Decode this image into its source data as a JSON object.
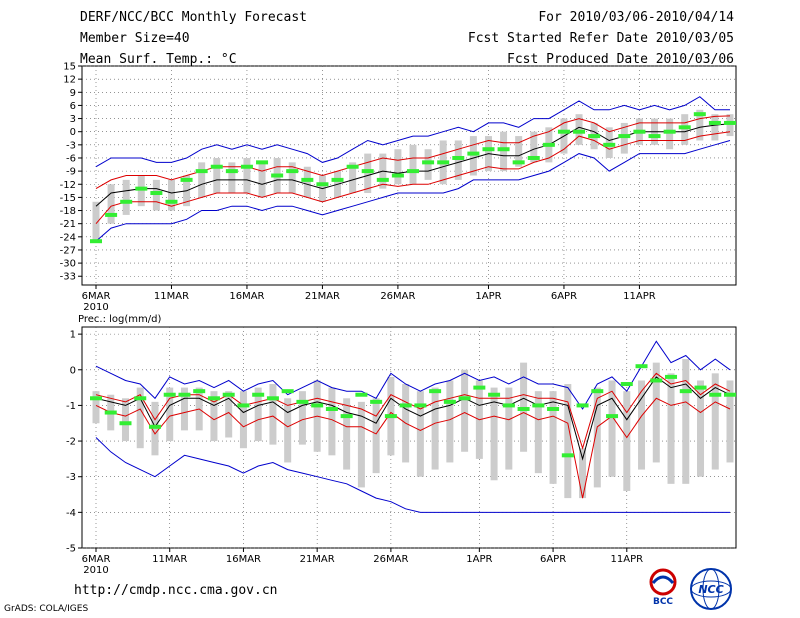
{
  "header": {
    "title": "DERF/NCC/BCC Monthly Forecast",
    "member_size": "Member Size=40",
    "variable": "Mean Surf. Temp.: °C",
    "period": "For 2010/03/06-2010/04/14",
    "start_date": "Fcst Started Refer Date 2010/03/05",
    "produced_date": "Fcst Produced Date 2010/03/06"
  },
  "footer": {
    "url": "http://cmdp.ncc.cma.gov.cn",
    "software": "GrADS: COLA/IGES",
    "logo_bcc": "BCC",
    "logo_ncc": "NCC"
  },
  "colors": {
    "max_min": "#0000cc",
    "spread": "#dd0000",
    "mean": "#000000",
    "obs": "#33ee33",
    "bar": "#cccccc",
    "grid": "#555555"
  },
  "chart_data": [
    {
      "type": "line",
      "title": "Mean Surf. Temp.: °C",
      "ylim": [
        -35,
        15
      ],
      "yticks": [
        15,
        12,
        9,
        6,
        3,
        0,
        -3,
        -6,
        -9,
        -12,
        -15,
        -18,
        -21,
        -24,
        -27,
        -30,
        -33
      ],
      "x_tick_labels": [
        "6MAR",
        "11MAR",
        "16MAR",
        "21MAR",
        "26MAR",
        "1APR",
        "6APR",
        "11APR"
      ],
      "x_tick_days": [
        0,
        5,
        10,
        15,
        20,
        26,
        31,
        36
      ],
      "year_label": "2010",
      "days": 40,
      "mean": [
        -17,
        -14,
        -13.5,
        -13,
        -13,
        -14,
        -13.5,
        -12,
        -11,
        -11,
        -11,
        -12,
        -11,
        -11,
        -12,
        -13,
        -12,
        -11,
        -10,
        -9,
        -9.5,
        -9,
        -9,
        -8,
        -7,
        -6,
        -5,
        -5.5,
        -5.5,
        -4,
        -3,
        -1,
        1,
        0,
        -2,
        -1,
        0,
        0,
        0,
        0,
        1,
        1.5,
        1.8
      ],
      "upper": [
        -13,
        -11,
        -10,
        -10,
        -10,
        -11,
        -10,
        -9,
        -8,
        -8,
        -8,
        -9,
        -8,
        -8,
        -9,
        -10,
        -9,
        -8,
        -7,
        -6,
        -6.5,
        -6,
        -6,
        -5,
        -4,
        -3,
        -2,
        -2.5,
        -2.5,
        -1,
        0,
        2,
        3,
        2,
        0,
        1,
        2,
        2,
        2,
        2,
        3,
        3.5,
        3.6
      ],
      "lower": [
        -21,
        -17,
        -16,
        -16,
        -16,
        -17,
        -16,
        -15,
        -14,
        -14,
        -14,
        -15,
        -14,
        -14,
        -15,
        -16,
        -15,
        -14,
        -13,
        -12,
        -12.5,
        -12,
        -12,
        -11,
        -10,
        -9,
        -8,
        -8.5,
        -8.5,
        -7,
        -6,
        -4,
        -1,
        -2,
        -4,
        -3,
        -2,
        -2,
        -2,
        -2,
        -1,
        -0.5,
        0
      ],
      "max": [
        -8,
        -6,
        -6,
        -6,
        -7,
        -7,
        -6,
        -4,
        -3,
        -4,
        -3,
        -4,
        -3,
        -4,
        -5,
        -7,
        -6,
        -4,
        -2,
        -3,
        -2,
        -1,
        -1,
        0,
        1,
        0,
        2,
        2,
        1,
        3,
        3,
        5,
        7,
        5,
        5,
        6,
        5,
        6,
        5,
        6,
        8,
        5,
        5
      ],
      "min": [
        -25,
        -22,
        -21,
        -21,
        -21,
        -21,
        -20,
        -18,
        -18,
        -17,
        -17,
        -18,
        -17,
        -17,
        -18,
        -19,
        -18,
        -17,
        -16,
        -15,
        -14,
        -14,
        -14,
        -14,
        -13,
        -11,
        -11,
        -11,
        -11,
        -10,
        -9,
        -7,
        -5,
        -6,
        -9,
        -7,
        -5,
        -5,
        -5,
        -5,
        -4,
        -3,
        -2
      ],
      "bar_top": [
        -16,
        -12,
        -11,
        -10,
        -11,
        -11,
        -10,
        -7,
        -6,
        -7,
        -6,
        -7,
        -6,
        -7,
        -8,
        -10,
        -9,
        -7,
        -5,
        -5,
        -4,
        -3,
        -4,
        -2,
        -2,
        -1,
        -1,
        0,
        -1,
        0,
        1,
        3,
        4,
        2,
        1,
        2,
        3,
        3,
        3,
        4,
        5,
        4,
        4
      ],
      "bar_bottom": [
        -25,
        -21,
        -19,
        -17,
        -18,
        -18,
        -17,
        -15,
        -14,
        -14,
        -14,
        -15,
        -14,
        -14,
        -15,
        -16,
        -15,
        -14,
        -14,
        -13,
        -12,
        -12,
        -11,
        -12,
        -11,
        -10,
        -9,
        -9,
        -8,
        -7,
        -7,
        -5,
        -3,
        -4,
        -6,
        -5,
        -3,
        -3,
        -4,
        -3,
        -2,
        -2,
        -1
      ],
      "obs": [
        -25,
        -19,
        -16,
        -13,
        -14,
        -16,
        -11,
        -9,
        -8,
        -9,
        -8,
        -7,
        -10,
        -9,
        -11,
        -12,
        -11,
        -8,
        -9,
        -11,
        -10,
        -9,
        -7,
        -7,
        -6,
        -5,
        -4,
        -4,
        -7,
        -6,
        -3,
        0,
        0,
        -1,
        -3,
        -1,
        0,
        -1,
        0,
        1,
        4,
        2,
        2
      ]
    },
    {
      "type": "line",
      "title": "Prec.: log(mm/d)",
      "ylim": [
        -5,
        1.2
      ],
      "yticks": [
        1,
        0,
        -1,
        -2,
        -3,
        -4,
        -5
      ],
      "x_tick_labels": [
        "6MAR",
        "11MAR",
        "16MAR",
        "21MAR",
        "26MAR",
        "1APR",
        "6APR",
        "11APR"
      ],
      "x_tick_days": [
        0,
        5,
        10,
        15,
        20,
        26,
        31,
        36
      ],
      "year_label": "2010",
      "days": 40,
      "mean": [
        -0.8,
        -0.9,
        -1,
        -0.8,
        -1.6,
        -1,
        -0.8,
        -0.8,
        -1,
        -0.8,
        -1.2,
        -1,
        -0.9,
        -1.2,
        -1,
        -0.9,
        -1,
        -1.2,
        -1.3,
        -1.5,
        -0.8,
        -1.1,
        -1.3,
        -1.1,
        -1.0,
        -0.8,
        -1,
        -0.9,
        -1,
        -0.8,
        -1,
        -0.9,
        -1.0,
        -2.5,
        -1.0,
        -0.8,
        -1.4,
        -0.8,
        -0.2,
        -0.5,
        -0.4,
        -0.8,
        -0.5,
        -0.7
      ],
      "upper": [
        -0.7,
        -0.8,
        -0.9,
        -0.7,
        -1.4,
        -0.8,
        -0.7,
        -0.7,
        -0.9,
        -0.7,
        -1.0,
        -0.9,
        -0.8,
        -1.0,
        -0.9,
        -0.8,
        -0.9,
        -1.0,
        -1.1,
        -1.3,
        -0.7,
        -0.9,
        -1.1,
        -0.9,
        -0.8,
        -0.7,
        -0.8,
        -0.8,
        -0.8,
        -0.7,
        -0.8,
        -0.8,
        -0.9,
        -2.2,
        -0.8,
        -0.6,
        -1.2,
        -0.6,
        -0.1,
        -0.4,
        -0.3,
        -0.7,
        -0.4,
        -0.6
      ],
      "lower": [
        -1.0,
        -1.2,
        -1.3,
        -1.1,
        -1.8,
        -1.3,
        -1.2,
        -1.1,
        -1.4,
        -1.2,
        -1.6,
        -1.4,
        -1.3,
        -1.6,
        -1.4,
        -1.3,
        -1.4,
        -1.6,
        -1.6,
        -1.8,
        -1.2,
        -1.5,
        -1.7,
        -1.5,
        -1.4,
        -1.2,
        -1.4,
        -1.3,
        -1.4,
        -1.2,
        -1.4,
        -1.3,
        -1.5,
        -3.6,
        -1.6,
        -1.3,
        -1.9,
        -1.3,
        -0.8,
        -1.0,
        -0.9,
        -1.2,
        -0.9,
        -1.1
      ],
      "max": [
        0.1,
        -0.1,
        -0.3,
        -0.4,
        -0.8,
        -0.2,
        -0.4,
        -0.3,
        -0.5,
        -0.3,
        -0.6,
        -0.4,
        -0.3,
        -0.7,
        -0.5,
        -0.3,
        -0.5,
        -0.6,
        -0.6,
        -0.8,
        -0.1,
        -0.4,
        -0.6,
        -0.4,
        -0.3,
        -0.1,
        -0.3,
        -0.2,
        -0.4,
        -0.2,
        -0.4,
        -0.4,
        -0.5,
        -1.1,
        -0.4,
        -0.2,
        -0.6,
        0.1,
        0.8,
        0.2,
        0.4,
        0.0,
        0.3,
        0.0
      ],
      "min": [
        -1.9,
        -2.3,
        -2.6,
        -2.8,
        -3.0,
        -2.7,
        -2.4,
        -2.5,
        -2.6,
        -2.7,
        -2.9,
        -2.7,
        -2.6,
        -2.8,
        -2.9,
        -3.0,
        -3.1,
        -3.2,
        -3.4,
        -3.6,
        -3.7,
        -3.9,
        -4.0,
        -4.0,
        -4.0,
        -4.0,
        -4.0,
        -4.0,
        -4.0,
        -4.0,
        -4.0,
        -4.0,
        -4.0,
        -4.0,
        -4.0,
        -4.0,
        -4.0,
        -4.0,
        -4.0,
        -4.0,
        -4.0,
        -4.0,
        -4.0,
        -4.0
      ],
      "bar_top": [
        -0.6,
        -0.7,
        -0.8,
        -0.5,
        -0.9,
        -0.5,
        -0.5,
        -0.5,
        -0.6,
        -0.6,
        -0.6,
        -0.5,
        -0.4,
        -0.8,
        -0.6,
        -0.3,
        -0.5,
        -0.8,
        -0.9,
        -0.8,
        -0.2,
        -0.4,
        -0.6,
        -0.5,
        -0.3,
        0.0,
        -0.3,
        -0.5,
        -0.5,
        0.2,
        -0.6,
        -0.6,
        -0.4,
        -2.2,
        -0.5,
        -0.3,
        -0.6,
        -0.3,
        0.2,
        -0.1,
        0.3,
        -0.3,
        -0.1,
        -0.3
      ],
      "bar_bottom": [
        -1.5,
        -1.7,
        -2.0,
        -2.2,
        -2.4,
        -2.0,
        -1.7,
        -1.7,
        -2.0,
        -1.9,
        -2.2,
        -2.0,
        -2.1,
        -2.6,
        -2.1,
        -2.3,
        -2.4,
        -2.8,
        -3.3,
        -2.9,
        -2.4,
        -2.6,
        -3.0,
        -2.8,
        -2.6,
        -2.3,
        -2.5,
        -3.1,
        -2.8,
        -2.3,
        -2.9,
        -3.2,
        -3.6,
        -3.6,
        -3.3,
        -3.0,
        -3.4,
        -2.8,
        -2.6,
        -3.2,
        -3.2,
        -3.0,
        -2.8,
        -2.6
      ],
      "obs": [
        -0.8,
        -1.2,
        -1.5,
        -0.8,
        -1.6,
        -0.7,
        -0.7,
        -0.6,
        -0.8,
        -0.7,
        -1.0,
        -0.7,
        -0.8,
        -0.6,
        -0.9,
        -1.0,
        -1.1,
        -1.3,
        -0.7,
        -0.9,
        -1.3,
        -1.0,
        -1.0,
        -0.6,
        -0.9,
        -0.8,
        -0.5,
        -0.7,
        -1.0,
        -1.1,
        -1.0,
        -1.1,
        -2.4,
        -1.0,
        -0.6,
        -1.3,
        -0.4,
        0.1,
        -0.3,
        -0.2,
        -0.6,
        -0.5,
        -0.7,
        -0.7
      ]
    }
  ]
}
